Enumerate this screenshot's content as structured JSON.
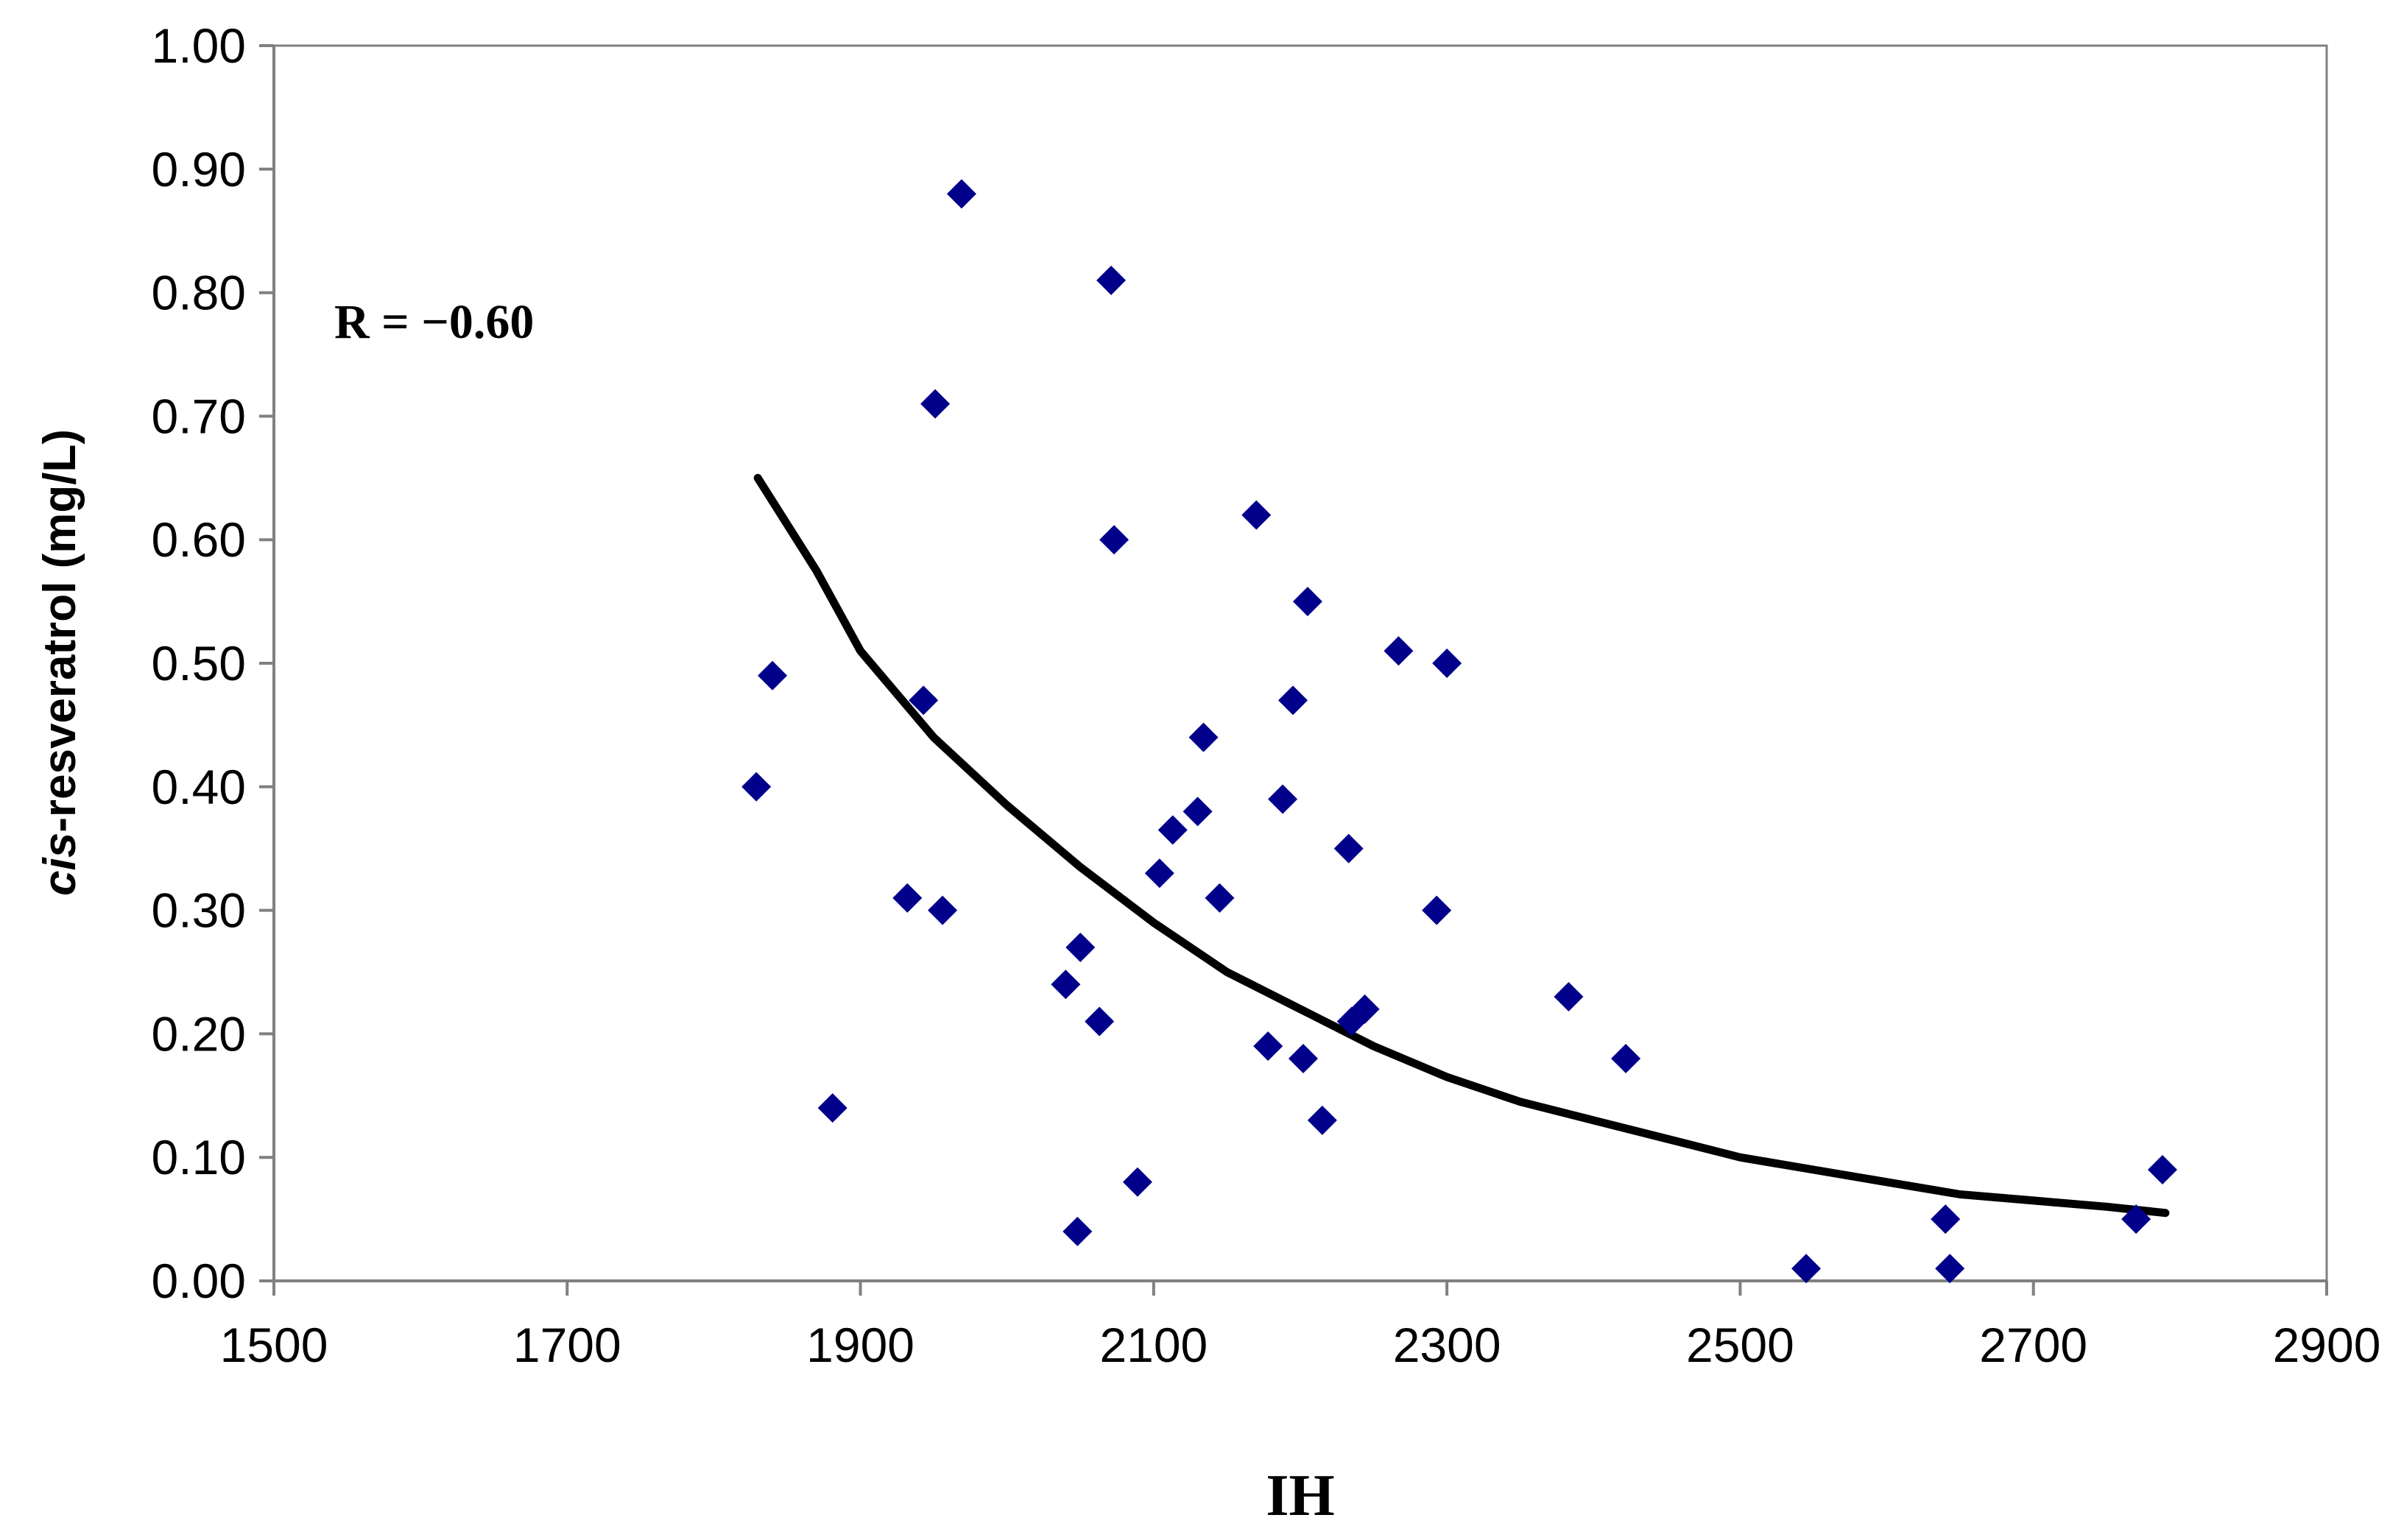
{
  "chart_data": {
    "type": "scatter",
    "title": "",
    "xlabel": "IH",
    "ylabel_italic": "cis",
    "ylabel_rest": "-resveratrol (mg/L)",
    "xlim": [
      1500,
      2900
    ],
    "ylim": [
      0,
      1.0
    ],
    "x_ticks": [
      1500,
      1700,
      1900,
      2100,
      2300,
      2500,
      2700,
      2900
    ],
    "y_ticks": [
      0,
      0.1,
      0.2,
      0.3,
      0.4,
      0.5,
      0.6,
      0.7,
      0.8,
      0.9,
      1.0
    ],
    "x_tick_labels": [
      "1500",
      "1700",
      "1900",
      "2100",
      "2300",
      "2500",
      "2700",
      "2900"
    ],
    "y_tick_labels": [
      "0.00",
      "0.10",
      "0.20",
      "0.30",
      "0.40",
      "0.50",
      "0.60",
      "0.70",
      "0.80",
      "0.90",
      "1.00"
    ],
    "grid": false,
    "legend": "none",
    "annotation": "R = −0.60",
    "marker_color": "#00008B",
    "trend_color": "#000000",
    "points": [
      {
        "x": 1829,
        "y": 0.4
      },
      {
        "x": 1840,
        "y": 0.49
      },
      {
        "x": 1881,
        "y": 0.14
      },
      {
        "x": 1932,
        "y": 0.31
      },
      {
        "x": 1943,
        "y": 0.47
      },
      {
        "x": 1951,
        "y": 0.71
      },
      {
        "x": 1956,
        "y": 0.3
      },
      {
        "x": 1969,
        "y": 0.88
      },
      {
        "x": 2040,
        "y": 0.24
      },
      {
        "x": 2048,
        "y": 0.04
      },
      {
        "x": 2050,
        "y": 0.27
      },
      {
        "x": 2063,
        "y": 0.21
      },
      {
        "x": 2071,
        "y": 0.81
      },
      {
        "x": 2073,
        "y": 0.6
      },
      {
        "x": 2089,
        "y": 0.08
      },
      {
        "x": 2104,
        "y": 0.33
      },
      {
        "x": 2113,
        "y": 0.365
      },
      {
        "x": 2130,
        "y": 0.38
      },
      {
        "x": 2134,
        "y": 0.44
      },
      {
        "x": 2145,
        "y": 0.31
      },
      {
        "x": 2170,
        "y": 0.62
      },
      {
        "x": 2178,
        "y": 0.19
      },
      {
        "x": 2188,
        "y": 0.39
      },
      {
        "x": 2195,
        "y": 0.47
      },
      {
        "x": 2202,
        "y": 0.18
      },
      {
        "x": 2205,
        "y": 0.55
      },
      {
        "x": 2215,
        "y": 0.13
      },
      {
        "x": 2233,
        "y": 0.35
      },
      {
        "x": 2235,
        "y": 0.21
      },
      {
        "x": 2244,
        "y": 0.22
      },
      {
        "x": 2267,
        "y": 0.51
      },
      {
        "x": 2293,
        "y": 0.3
      },
      {
        "x": 2300,
        "y": 0.5
      },
      {
        "x": 2383,
        "y": 0.23
      },
      {
        "x": 2422,
        "y": 0.18
      },
      {
        "x": 2545,
        "y": 0.01
      },
      {
        "x": 2640,
        "y": 0.05
      },
      {
        "x": 2643,
        "y": 0.01
      },
      {
        "x": 2770,
        "y": 0.05
      },
      {
        "x": 2788,
        "y": 0.09
      }
    ],
    "trend": [
      {
        "x": 1830,
        "y": 0.65
      },
      {
        "x": 1870,
        "y": 0.575
      },
      {
        "x": 1900,
        "y": 0.51
      },
      {
        "x": 1950,
        "y": 0.44
      },
      {
        "x": 2000,
        "y": 0.385
      },
      {
        "x": 2050,
        "y": 0.335
      },
      {
        "x": 2100,
        "y": 0.29
      },
      {
        "x": 2150,
        "y": 0.25
      },
      {
        "x": 2200,
        "y": 0.22
      },
      {
        "x": 2250,
        "y": 0.19
      },
      {
        "x": 2300,
        "y": 0.165
      },
      {
        "x": 2350,
        "y": 0.145
      },
      {
        "x": 2400,
        "y": 0.13
      },
      {
        "x": 2450,
        "y": 0.115
      },
      {
        "x": 2500,
        "y": 0.1
      },
      {
        "x": 2550,
        "y": 0.09
      },
      {
        "x": 2600,
        "y": 0.08
      },
      {
        "x": 2650,
        "y": 0.07
      },
      {
        "x": 2700,
        "y": 0.065
      },
      {
        "x": 2750,
        "y": 0.06
      },
      {
        "x": 2790,
        "y": 0.055
      }
    ]
  }
}
